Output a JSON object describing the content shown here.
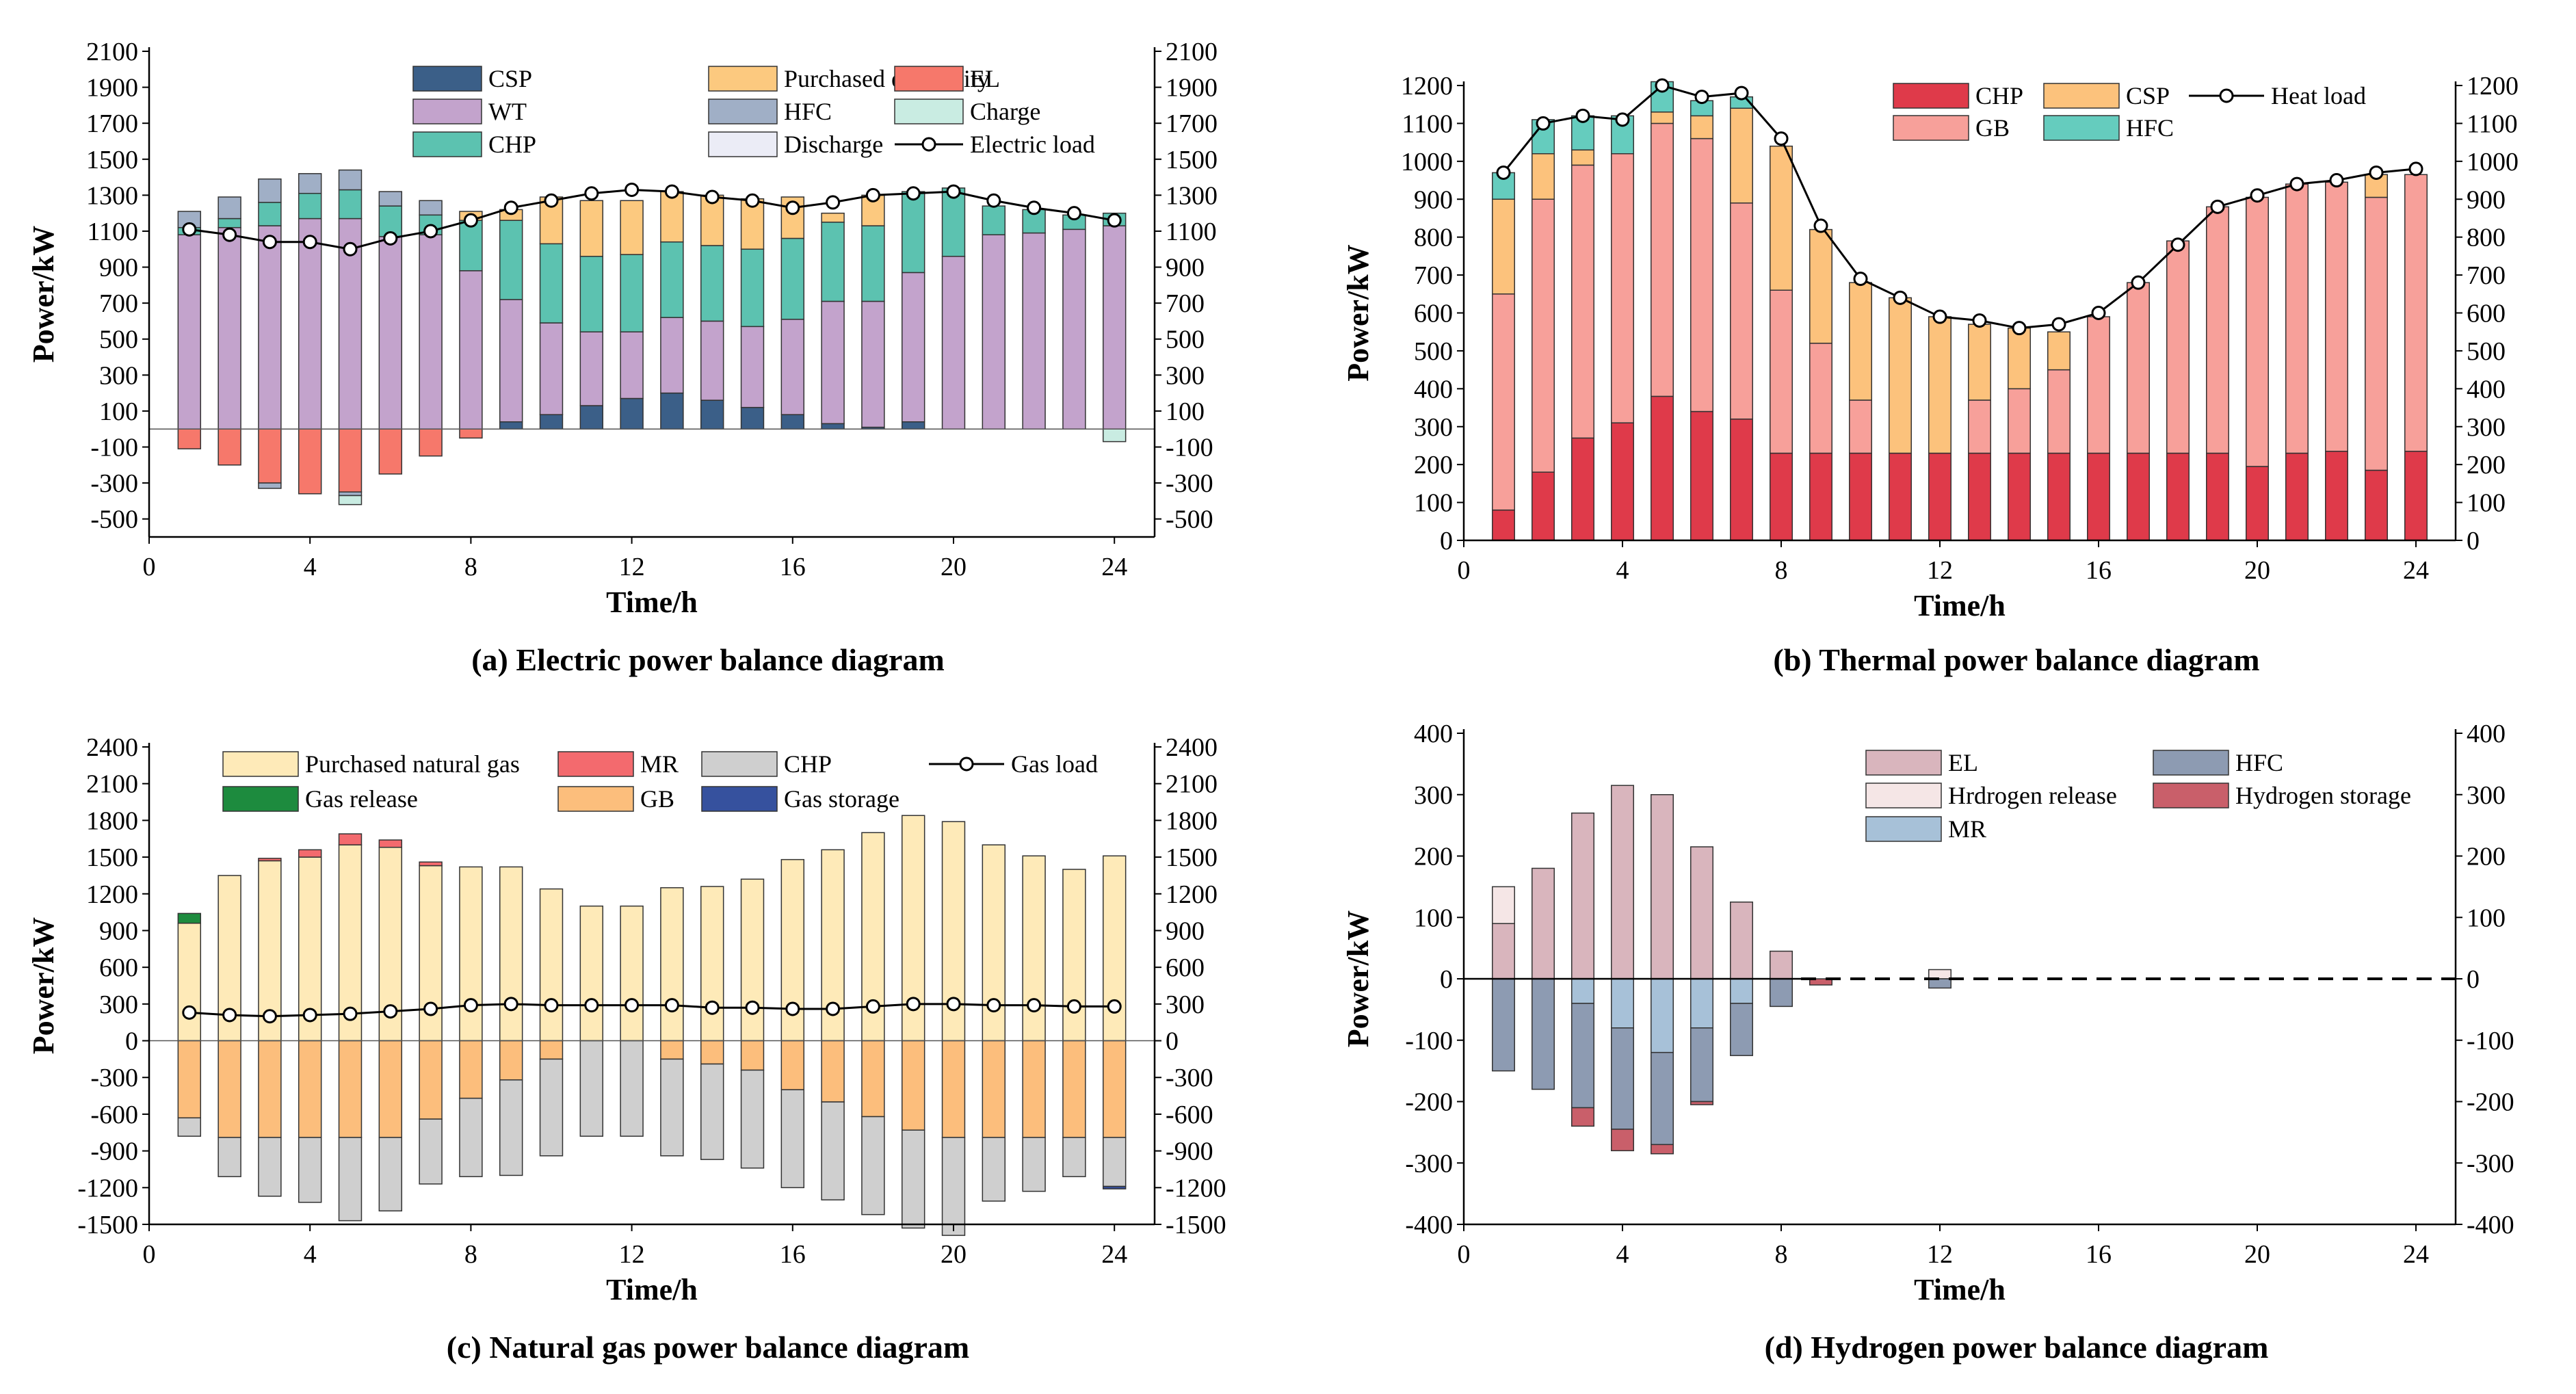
{
  "colors": {
    "elec": {
      "CSP": "#3b5f88",
      "WT": "#c3a3cc",
      "CHP": "#5cc2b0",
      "Purchased electricity": "#fcc97f",
      "HFC": "#a0afc6",
      "Discharge": "#ebecf6",
      "EL": "#f6786b",
      "Charge": "#c9ece2",
      "line": "#000000"
    },
    "heat": {
      "CHP": "#df3a4a",
      "GB": "#f7a09a",
      "CSP": "#fcc27c",
      "HFC": "#65ccbe"
    },
    "gas": {
      "Purchased natural gas": "#feeab8",
      "Gas release": "#1d8b3e",
      "MR": "#f36a6e",
      "GB": "#fcbe7c",
      "CHP": "#cfcfcf",
      "Gas storage": "#36519e"
    },
    "h2": {
      "EL": "#d9b5bd",
      "Hrdrogen release": "#f5e6e6",
      "MR": "#a7c1d8",
      "HFC": "#8d9bb2",
      "Hydrogen storage": "#c95f6a"
    }
  },
  "chart_data": [
    {
      "id": "a",
      "type": "bar",
      "stacked": true,
      "caption": "(a) Electric power balance diagram",
      "xlabel": "Time/h",
      "ylabel": "Power/kW",
      "xlim": [
        0,
        25
      ],
      "xticks": [
        "0",
        "4",
        "8",
        "12",
        "16",
        "20",
        "24"
      ],
      "ylim": [
        -600,
        2100
      ],
      "yticks": [
        "2100",
        "1900",
        "1700",
        "1500",
        "1300",
        "1100",
        "900",
        "700",
        "500",
        "300",
        "100",
        "-100",
        "-300",
        "-500"
      ],
      "legend_position": "top-right",
      "legend": [
        {
          "name": "CSP",
          "kind": "bar"
        },
        {
          "name": "Purchased electricity",
          "kind": "bar"
        },
        {
          "name": "EL",
          "kind": "bar"
        },
        {
          "name": "WT",
          "kind": "bar"
        },
        {
          "name": "HFC",
          "kind": "bar"
        },
        {
          "name": "Charge",
          "kind": "bar"
        },
        {
          "name": "CHP",
          "kind": "bar"
        },
        {
          "name": "Discharge",
          "kind": "bar"
        },
        {
          "name": "Electric load",
          "kind": "line"
        }
      ],
      "x": [
        1,
        2,
        3,
        4,
        5,
        6,
        7,
        8,
        9,
        10,
        11,
        12,
        13,
        14,
        15,
        16,
        17,
        18,
        19,
        20,
        21,
        22,
        23,
        24
      ],
      "pos_series": [
        {
          "name": "CSP",
          "values": [
            0,
            0,
            0,
            0,
            0,
            0,
            0,
            0,
            40,
            80,
            130,
            170,
            200,
            160,
            120,
            80,
            30,
            10,
            40,
            0,
            0,
            0,
            0,
            0
          ]
        },
        {
          "name": "WT",
          "values": [
            1080,
            1120,
            1130,
            1170,
            1170,
            1070,
            1080,
            880,
            680,
            510,
            410,
            370,
            420,
            440,
            450,
            530,
            680,
            700,
            830,
            960,
            1080,
            1090,
            1110,
            1130
          ]
        },
        {
          "name": "CHP",
          "values": [
            40,
            50,
            130,
            140,
            160,
            170,
            110,
            280,
            440,
            440,
            420,
            430,
            420,
            420,
            430,
            450,
            440,
            420,
            450,
            380,
            160,
            130,
            80,
            70
          ]
        },
        {
          "name": "Purchased electricity",
          "values": [
            0,
            0,
            0,
            0,
            0,
            0,
            0,
            50,
            60,
            260,
            310,
            300,
            280,
            280,
            280,
            230,
            50,
            170,
            0,
            0,
            0,
            0,
            0,
            0
          ]
        },
        {
          "name": "HFC",
          "values": [
            90,
            120,
            130,
            110,
            110,
            80,
            80,
            0,
            0,
            0,
            0,
            0,
            0,
            0,
            0,
            0,
            0,
            0,
            0,
            0,
            0,
            0,
            0,
            0
          ]
        },
        {
          "name": "Discharge",
          "values": [
            0,
            0,
            0,
            0,
            0,
            0,
            0,
            0,
            0,
            0,
            0,
            0,
            0,
            0,
            0,
            0,
            0,
            0,
            0,
            0,
            0,
            0,
            0,
            0
          ]
        }
      ],
      "neg_series": [
        {
          "name": "EL",
          "values": [
            -110,
            -200,
            -300,
            -360,
            -350,
            -250,
            -150,
            -50,
            0,
            0,
            0,
            0,
            0,
            0,
            0,
            0,
            0,
            0,
            0,
            0,
            0,
            0,
            0,
            0
          ]
        },
        {
          "name": "HFC",
          "values": [
            0,
            0,
            -30,
            0,
            -20,
            0,
            0,
            0,
            0,
            0,
            0,
            0,
            0,
            0,
            0,
            0,
            0,
            0,
            0,
            0,
            0,
            0,
            0,
            0
          ]
        },
        {
          "name": "Charge",
          "values": [
            0,
            0,
            0,
            0,
            -50,
            0,
            0,
            0,
            0,
            0,
            0,
            0,
            0,
            0,
            0,
            0,
            0,
            0,
            0,
            0,
            0,
            0,
            0,
            -70
          ]
        }
      ],
      "line": {
        "name": "Electric load",
        "values": [
          1110,
          1080,
          1040,
          1040,
          1000,
          1060,
          1100,
          1160,
          1230,
          1270,
          1310,
          1330,
          1320,
          1290,
          1270,
          1230,
          1260,
          1300,
          1310,
          1320,
          1270,
          1230,
          1200,
          1160
        ]
      }
    },
    {
      "id": "b",
      "type": "bar",
      "stacked": true,
      "caption": "(b) Thermal power balance diagram",
      "xlabel": "Time/h",
      "ylabel": "Power/kW",
      "xlim": [
        0,
        25
      ],
      "xticks": [
        "0",
        "4",
        "8",
        "12",
        "16",
        "20",
        "24"
      ],
      "ylim": [
        0,
        1200
      ],
      "yticks": [
        "1200",
        "1100",
        "1000",
        "900",
        "800",
        "700",
        "600",
        "500",
        "400",
        "300",
        "200",
        "100",
        "0"
      ],
      "legend_position": "top-right",
      "legend": [
        {
          "name": "CHP",
          "kind": "bar"
        },
        {
          "name": "CSP",
          "kind": "bar"
        },
        {
          "name": "Heat load",
          "kind": "line"
        },
        {
          "name": "GB",
          "kind": "bar"
        },
        {
          "name": "HFC",
          "kind": "bar"
        }
      ],
      "x": [
        1,
        2,
        3,
        4,
        5,
        6,
        7,
        8,
        9,
        10,
        11,
        12,
        13,
        14,
        15,
        16,
        17,
        18,
        19,
        20,
        21,
        22,
        23,
        24
      ],
      "pos_series": [
        {
          "name": "CHP",
          "values": [
            80,
            180,
            270,
            310,
            380,
            340,
            320,
            230,
            230,
            230,
            230,
            230,
            230,
            230,
            230,
            230,
            230,
            230,
            230,
            195,
            230,
            235,
            185,
            235
          ]
        },
        {
          "name": "GB",
          "values": [
            570,
            720,
            720,
            710,
            720,
            720,
            570,
            430,
            290,
            140,
            0,
            0,
            140,
            170,
            220,
            360,
            450,
            560,
            650,
            710,
            710,
            710,
            720,
            730
          ]
        },
        {
          "name": "CSP",
          "values": [
            250,
            120,
            40,
            0,
            30,
            60,
            250,
            380,
            300,
            310,
            410,
            360,
            200,
            160,
            100,
            0,
            0,
            0,
            0,
            0,
            0,
            0,
            60,
            0
          ]
        },
        {
          "name": "HFC",
          "values": [
            70,
            90,
            90,
            100,
            80,
            40,
            30,
            0,
            0,
            0,
            0,
            0,
            0,
            0,
            0,
            0,
            0,
            0,
            0,
            0,
            0,
            0,
            0,
            0
          ]
        }
      ],
      "neg_series": [],
      "line": {
        "name": "Heat load",
        "values": [
          970,
          1100,
          1120,
          1110,
          1200,
          1170,
          1180,
          1060,
          830,
          690,
          640,
          590,
          580,
          560,
          570,
          600,
          680,
          780,
          880,
          910,
          940,
          950,
          970,
          980
        ]
      }
    },
    {
      "id": "c",
      "type": "bar",
      "stacked": true,
      "caption": "(c) Natural gas power balance diagram",
      "xlabel": "Time/h",
      "ylabel": "Power/kW",
      "xlim": [
        0,
        25
      ],
      "xticks": [
        "0",
        "4",
        "8",
        "12",
        "16",
        "20",
        "24"
      ],
      "ylim": [
        -1500,
        2400
      ],
      "yticks": [
        "2400",
        "2100",
        "1800",
        "1500",
        "1200",
        "900",
        "600",
        "300",
        "0",
        "-300",
        "-600",
        "-900",
        "-1200",
        "-1500"
      ],
      "legend_position": "top",
      "legend": [
        {
          "name": "Purchased natural gas",
          "kind": "bar"
        },
        {
          "name": "MR",
          "kind": "bar"
        },
        {
          "name": "CHP",
          "kind": "bar"
        },
        {
          "name": "Gas load",
          "kind": "line"
        },
        {
          "name": "Gas release",
          "kind": "bar"
        },
        {
          "name": "GB",
          "kind": "bar"
        },
        {
          "name": "Gas storage",
          "kind": "bar"
        }
      ],
      "x": [
        1,
        2,
        3,
        4,
        5,
        6,
        7,
        8,
        9,
        10,
        11,
        12,
        13,
        14,
        15,
        16,
        17,
        18,
        19,
        20,
        21,
        22,
        23,
        24
      ],
      "pos_series": [
        {
          "name": "Purchased natural gas",
          "values": [
            960,
            1350,
            1470,
            1500,
            1600,
            1580,
            1430,
            1420,
            1420,
            1240,
            1100,
            1100,
            1250,
            1260,
            1320,
            1480,
            1560,
            1700,
            1840,
            1790,
            1600,
            1510,
            1400,
            1510
          ]
        },
        {
          "name": "MR",
          "values": [
            0,
            0,
            20,
            60,
            90,
            60,
            30,
            0,
            0,
            0,
            0,
            0,
            0,
            0,
            0,
            0,
            0,
            0,
            0,
            0,
            0,
            0,
            0,
            0
          ]
        },
        {
          "name": "Gas release",
          "values": [
            80,
            0,
            0,
            0,
            0,
            0,
            0,
            0,
            0,
            0,
            0,
            0,
            0,
            0,
            0,
            0,
            0,
            0,
            0,
            0,
            0,
            0,
            0,
            0
          ]
        }
      ],
      "neg_series": [
        {
          "name": "GB",
          "values": [
            -630,
            -790,
            -790,
            -790,
            -790,
            -790,
            -640,
            -470,
            -320,
            -150,
            0,
            0,
            -150,
            -190,
            -240,
            -400,
            -500,
            -620,
            -730,
            -790,
            -790,
            -790,
            -790,
            -790
          ]
        },
        {
          "name": "CHP",
          "values": [
            -150,
            -320,
            -480,
            -530,
            -680,
            -600,
            -530,
            -640,
            -780,
            -790,
            -780,
            -780,
            -790,
            -780,
            -800,
            -800,
            -800,
            -800,
            -800,
            -800,
            -520,
            -440,
            -320,
            -400
          ]
        },
        {
          "name": "Gas storage",
          "values": [
            0,
            0,
            0,
            0,
            0,
            0,
            0,
            0,
            0,
            0,
            0,
            0,
            0,
            0,
            0,
            0,
            0,
            0,
            0,
            0,
            0,
            0,
            0,
            -20
          ]
        }
      ],
      "line": {
        "name": "Gas load",
        "values": [
          230,
          210,
          200,
          210,
          220,
          240,
          260,
          290,
          300,
          290,
          290,
          290,
          290,
          270,
          270,
          260,
          260,
          280,
          300,
          300,
          290,
          290,
          280,
          280
        ]
      }
    },
    {
      "id": "d",
      "type": "bar",
      "stacked": true,
      "caption": "(d) Hydrogen power balance diagram",
      "xlabel": "Time/h",
      "ylabel": "Power/kW",
      "xlim": [
        0,
        25
      ],
      "xticks": [
        "0",
        "4",
        "8",
        "12",
        "16",
        "20",
        "24"
      ],
      "ylim": [
        -400,
        400
      ],
      "yticks": [
        "400",
        "300",
        "200",
        "100",
        "0",
        "-100",
        "-200",
        "-300",
        "-400"
      ],
      "legend_position": "top-right",
      "legend": [
        {
          "name": "EL",
          "kind": "bar"
        },
        {
          "name": "HFC",
          "kind": "bar"
        },
        {
          "name": "Hrdrogen release",
          "kind": "bar"
        },
        {
          "name": "Hydrogen storage",
          "kind": "bar"
        },
        {
          "name": "MR",
          "kind": "bar"
        }
      ],
      "x": [
        1,
        2,
        3,
        4,
        5,
        6,
        7,
        8,
        9,
        10,
        11,
        12,
        13,
        14,
        15,
        16,
        17,
        18,
        19,
        20,
        21,
        22,
        23,
        24
      ],
      "pos_series": [
        {
          "name": "EL",
          "values": [
            90,
            180,
            270,
            315,
            300,
            215,
            125,
            45,
            0,
            0,
            0,
            0,
            0,
            0,
            0,
            0,
            0,
            0,
            0,
            0,
            0,
            0,
            0,
            0
          ]
        },
        {
          "name": "Hrdrogen release",
          "values": [
            60,
            0,
            0,
            0,
            0,
            0,
            0,
            0,
            0,
            0,
            0,
            15,
            0,
            0,
            0,
            0,
            0,
            0,
            0,
            0,
            0,
            0,
            0,
            0
          ]
        }
      ],
      "neg_series": [
        {
          "name": "MR",
          "values": [
            0,
            0,
            -40,
            -80,
            -120,
            -80,
            -40,
            0,
            0,
            0,
            0,
            0,
            0,
            0,
            0,
            0,
            0,
            0,
            0,
            0,
            0,
            0,
            0,
            0
          ]
        },
        {
          "name": "HFC",
          "values": [
            -150,
            -180,
            -170,
            -165,
            -150,
            -120,
            -85,
            -45,
            0,
            0,
            0,
            -15,
            0,
            0,
            0,
            0,
            0,
            0,
            0,
            0,
            0,
            0,
            0,
            0
          ]
        },
        {
          "name": "Hydrogen storage",
          "values": [
            0,
            0,
            -30,
            -35,
            -15,
            -5,
            0,
            0,
            -10,
            0,
            0,
            0,
            0,
            0,
            0,
            0,
            0,
            0,
            0,
            0,
            0,
            0,
            0,
            0
          ]
        }
      ],
      "line": null,
      "zero_dashed_from": 8.5
    }
  ]
}
